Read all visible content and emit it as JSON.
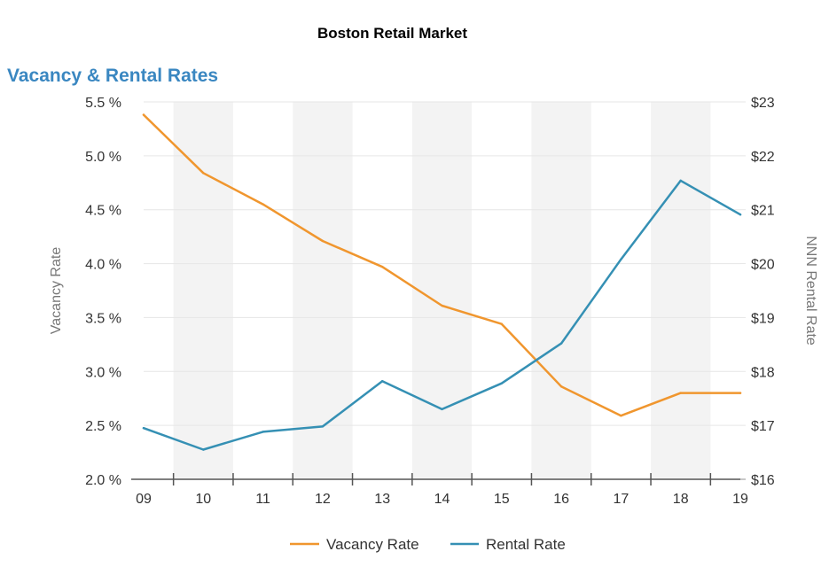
{
  "header": {
    "title": "Boston Retail Market"
  },
  "chart_data": {
    "type": "line",
    "title": "Vacancy & Rental Rates",
    "categories": [
      "09",
      "10",
      "11",
      "12",
      "13",
      "14",
      "15",
      "16",
      "17",
      "18",
      "19"
    ],
    "series": [
      {
        "name": "Vacancy Rate",
        "axis": "left",
        "color": "#f0962e",
        "values": [
          5.38,
          4.84,
          4.55,
          4.21,
          3.97,
          3.61,
          3.44,
          2.86,
          2.59,
          2.8,
          2.8
        ]
      },
      {
        "name": "Rental Rate",
        "axis": "right",
        "color": "#3590b4",
        "values": [
          16.95,
          16.55,
          16.88,
          16.98,
          17.82,
          17.3,
          17.78,
          18.52,
          20.08,
          21.54,
          20.91
        ]
      }
    ],
    "y_left": {
      "label": "Vacancy Rate",
      "min": 2.0,
      "max": 5.5,
      "ticks": [
        2.0,
        2.5,
        3.0,
        3.5,
        4.0,
        4.5,
        5.0,
        5.5
      ],
      "tick_labels": [
        "2.0 %",
        "2.5 %",
        "3.0 %",
        "3.5 %",
        "4.0 %",
        "4.5 %",
        "5.0 %",
        "5.5 %"
      ]
    },
    "y_right": {
      "label": "NNN Rental Rate",
      "min": 16,
      "max": 23,
      "ticks": [
        16,
        17,
        18,
        19,
        20,
        21,
        22,
        23
      ],
      "tick_labels": [
        "$16",
        "$17",
        "$18",
        "$19",
        "$20",
        "$21",
        "$22",
        "$23"
      ]
    },
    "legend": {
      "position": "bottom-center"
    },
    "grid": true,
    "colors": {
      "band": "#f3f3f3",
      "grid": "#e6e6e6",
      "axis": "#555555",
      "tick_text": "#333333",
      "axis_label": "#777777"
    }
  }
}
